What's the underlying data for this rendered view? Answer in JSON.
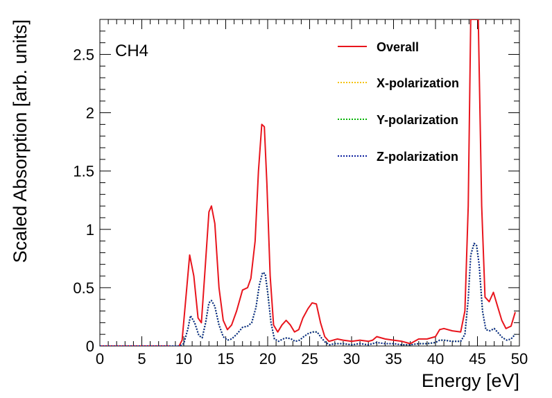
{
  "chart_data": {
    "type": "line",
    "title": "",
    "annotation": "CH4",
    "xlabel": "Energy [eV]",
    "ylabel": "Scaled Absorption [arb. units]",
    "xlim": [
      0,
      50
    ],
    "ylim": [
      0,
      2.8
    ],
    "x_ticks": [
      0,
      5,
      10,
      15,
      20,
      25,
      30,
      35,
      40,
      45,
      50
    ],
    "x_tick_labels": [
      "0",
      "5",
      "10",
      "15",
      "20",
      "25",
      "30",
      "35",
      "40",
      "45",
      "50"
    ],
    "y_ticks": [
      0,
      0.5,
      1,
      1.5,
      2,
      2.5
    ],
    "y_tick_labels": [
      "0",
      "0.5",
      "1",
      "1.5",
      "2",
      "2.5"
    ],
    "legend_position": "top-right",
    "series": [
      {
        "name": "Overall",
        "color": "#e8141c",
        "style": "solid",
        "x": [
          0,
          8.3,
          8.8,
          9.3,
          9.8,
          10.3,
          10.7,
          11.2,
          11.7,
          12.1,
          12.5,
          13.0,
          13.3,
          13.7,
          14.2,
          14.7,
          15.2,
          15.7,
          16.3,
          17.0,
          17.6,
          18.0,
          18.5,
          18.9,
          19.3,
          19.6,
          19.9,
          20.3,
          20.7,
          21.2,
          21.7,
          22.2,
          22.7,
          23.2,
          23.7,
          24.2,
          24.8,
          25.3,
          25.8,
          26.3,
          26.8,
          27.3,
          27.8,
          28.3,
          29.0,
          30.0,
          31.0,
          32.0,
          32.5,
          33.0,
          34.0,
          35.0,
          36.0,
          37.0,
          38.0,
          39.0,
          40.0,
          40.5,
          41.0,
          42.0,
          43.0,
          43.5,
          43.9,
          44.2,
          44.5,
          44.8,
          45.1,
          45.5,
          45.9,
          46.4,
          46.9,
          47.4,
          47.9,
          48.4,
          49.0,
          49.5
        ],
        "values": [
          0,
          0,
          -0.03,
          -0.02,
          0.05,
          0.45,
          0.78,
          0.6,
          0.24,
          0.2,
          0.62,
          1.15,
          1.2,
          1.05,
          0.5,
          0.22,
          0.14,
          0.18,
          0.3,
          0.48,
          0.5,
          0.58,
          0.9,
          1.5,
          1.9,
          1.88,
          1.4,
          0.6,
          0.18,
          0.12,
          0.18,
          0.22,
          0.18,
          0.12,
          0.14,
          0.24,
          0.32,
          0.37,
          0.36,
          0.2,
          0.08,
          0.04,
          0.05,
          0.06,
          0.05,
          0.04,
          0.05,
          0.04,
          0.05,
          0.08,
          0.06,
          0.05,
          0.04,
          0.02,
          0.06,
          0.06,
          0.08,
          0.14,
          0.15,
          0.13,
          0.12,
          0.3,
          1.2,
          2.8,
          2.8,
          2.8,
          2.8,
          1.2,
          0.42,
          0.38,
          0.46,
          0.34,
          0.22,
          0.15,
          0.17,
          0.29
        ]
      },
      {
        "name": "X-polarization",
        "color": "#f5c200",
        "style": "dotted",
        "x": [
          0,
          8.3,
          9.0,
          9.5,
          10.0,
          10.5,
          10.8,
          11.3,
          11.8,
          12.2,
          12.6,
          13.0,
          13.3,
          13.7,
          14.2,
          14.7,
          15.2,
          15.7,
          16.3,
          17.0,
          17.6,
          18.1,
          18.6,
          19.0,
          19.4,
          19.7,
          20.0,
          20.4,
          20.8,
          21.3,
          21.8,
          22.3,
          22.8,
          23.3,
          23.8,
          24.3,
          24.9,
          25.4,
          25.9,
          26.4,
          26.9,
          27.4,
          28.0,
          29.0,
          30.0,
          31.0,
          32.0,
          33.0,
          34.0,
          35.0,
          36.0,
          37.0,
          38.0,
          39.0,
          40.0,
          40.5,
          41.0,
          42.0,
          43.0,
          43.5,
          43.9,
          44.2,
          44.6,
          44.9,
          45.2,
          45.6,
          46.0,
          46.5,
          47.0,
          47.5,
          48.0,
          48.5,
          49.0,
          49.5
        ],
        "values": [
          0,
          0,
          0,
          0,
          0.02,
          0.15,
          0.26,
          0.2,
          0.09,
          0.07,
          0.2,
          0.37,
          0.39,
          0.34,
          0.18,
          0.08,
          0.05,
          0.06,
          0.1,
          0.16,
          0.17,
          0.2,
          0.33,
          0.52,
          0.63,
          0.62,
          0.46,
          0.2,
          0.06,
          0.04,
          0.06,
          0.07,
          0.06,
          0.04,
          0.05,
          0.08,
          0.11,
          0.12,
          0.12,
          0.07,
          0.03,
          0.01,
          0.02,
          0.02,
          0.01,
          0.02,
          0.01,
          0.03,
          0.02,
          0.02,
          0.01,
          0.01,
          0.02,
          0.02,
          0.03,
          0.05,
          0.05,
          0.04,
          0.04,
          0.1,
          0.4,
          0.78,
          0.88,
          0.86,
          0.7,
          0.3,
          0.14,
          0.13,
          0.15,
          0.11,
          0.07,
          0.05,
          0.06,
          0.1
        ]
      },
      {
        "name": "Y-polarization",
        "color": "#00b200",
        "style": "dotted",
        "x": [
          0,
          8.3,
          9.0,
          9.5,
          10.0,
          10.5,
          10.8,
          11.3,
          11.8,
          12.2,
          12.6,
          13.0,
          13.3,
          13.7,
          14.2,
          14.7,
          15.2,
          15.7,
          16.3,
          17.0,
          17.6,
          18.1,
          18.6,
          19.0,
          19.4,
          19.7,
          20.0,
          20.4,
          20.8,
          21.3,
          21.8,
          22.3,
          22.8,
          23.3,
          23.8,
          24.3,
          24.9,
          25.4,
          25.9,
          26.4,
          26.9,
          27.4,
          28.0,
          29.0,
          30.0,
          31.0,
          32.0,
          33.0,
          34.0,
          35.0,
          36.0,
          37.0,
          38.0,
          39.0,
          40.0,
          40.5,
          41.0,
          42.0,
          43.0,
          43.5,
          43.9,
          44.2,
          44.6,
          44.9,
          45.2,
          45.6,
          46.0,
          46.5,
          47.0,
          47.5,
          48.0,
          48.5,
          49.0,
          49.5
        ],
        "values": [
          0,
          0,
          0,
          0,
          0.02,
          0.15,
          0.26,
          0.2,
          0.09,
          0.07,
          0.2,
          0.37,
          0.39,
          0.34,
          0.18,
          0.08,
          0.05,
          0.06,
          0.1,
          0.16,
          0.17,
          0.2,
          0.33,
          0.52,
          0.63,
          0.62,
          0.46,
          0.2,
          0.06,
          0.04,
          0.06,
          0.07,
          0.06,
          0.04,
          0.05,
          0.08,
          0.11,
          0.12,
          0.12,
          0.07,
          0.03,
          0.01,
          0.02,
          0.02,
          0.01,
          0.02,
          0.01,
          0.03,
          0.02,
          0.02,
          0.01,
          0.01,
          0.02,
          0.02,
          0.03,
          0.05,
          0.05,
          0.04,
          0.04,
          0.1,
          0.4,
          0.78,
          0.88,
          0.86,
          0.7,
          0.3,
          0.14,
          0.13,
          0.15,
          0.11,
          0.07,
          0.05,
          0.06,
          0.1
        ]
      },
      {
        "name": "Z-polarization",
        "color": "#0b1f9e",
        "style": "dotted",
        "x": [
          0,
          8.3,
          9.0,
          9.5,
          10.0,
          10.5,
          10.8,
          11.3,
          11.8,
          12.2,
          12.6,
          13.0,
          13.3,
          13.7,
          14.2,
          14.7,
          15.2,
          15.7,
          16.3,
          17.0,
          17.6,
          18.1,
          18.6,
          19.0,
          19.4,
          19.7,
          20.0,
          20.4,
          20.8,
          21.3,
          21.8,
          22.3,
          22.8,
          23.3,
          23.8,
          24.3,
          24.9,
          25.4,
          25.9,
          26.4,
          26.9,
          27.4,
          28.0,
          29.0,
          30.0,
          31.0,
          32.0,
          33.0,
          34.0,
          35.0,
          36.0,
          37.0,
          38.0,
          39.0,
          40.0,
          40.5,
          41.0,
          42.0,
          43.0,
          43.5,
          43.9,
          44.2,
          44.6,
          44.9,
          45.2,
          45.6,
          46.0,
          46.5,
          47.0,
          47.5,
          48.0,
          48.5,
          49.0,
          49.5
        ],
        "values": [
          0,
          0,
          0,
          0,
          0.02,
          0.15,
          0.26,
          0.2,
          0.09,
          0.07,
          0.2,
          0.37,
          0.39,
          0.34,
          0.18,
          0.08,
          0.05,
          0.06,
          0.1,
          0.16,
          0.17,
          0.2,
          0.33,
          0.52,
          0.63,
          0.62,
          0.46,
          0.2,
          0.06,
          0.04,
          0.06,
          0.07,
          0.06,
          0.04,
          0.05,
          0.08,
          0.11,
          0.12,
          0.12,
          0.07,
          0.03,
          0.01,
          0.02,
          0.02,
          0.01,
          0.02,
          0.01,
          0.03,
          0.02,
          0.02,
          0.01,
          0.01,
          0.02,
          0.02,
          0.03,
          0.05,
          0.05,
          0.04,
          0.04,
          0.1,
          0.4,
          0.78,
          0.88,
          0.86,
          0.7,
          0.3,
          0.14,
          0.13,
          0.15,
          0.11,
          0.07,
          0.05,
          0.06,
          0.1
        ]
      }
    ]
  }
}
